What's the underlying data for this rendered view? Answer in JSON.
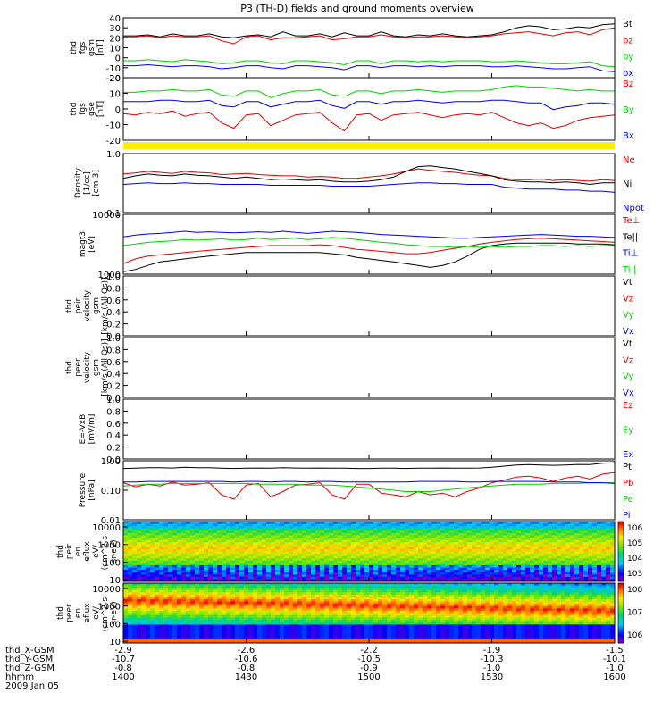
{
  "title": "P3 (TH-D) fields and ground moments overview",
  "colors": {
    "black": "#000000",
    "red": "#e00000",
    "green": "#00d000",
    "blue": "#0000e0",
    "yellow": "#ffee00"
  },
  "footer": {
    "rows": [
      "thd_X-GSM",
      "thd_Y-GSM",
      "thd_Z-GSM",
      "hhmm",
      "2009 Jan 05"
    ],
    "columns": [
      [
        "-2.9",
        "-10.7",
        "-0.8",
        "1400"
      ],
      [
        "-2.6",
        "-10.6",
        "-0.8",
        "1430"
      ],
      [
        "-2.2",
        "-10.5",
        "-0.9",
        "1500"
      ],
      [
        "-1.9",
        "-10.3",
        "-1.0",
        "1530"
      ],
      [
        "-1.5",
        "-10.1",
        "-1.0",
        "1600"
      ]
    ]
  },
  "chart_data": [
    {
      "id": "p1",
      "type": "line",
      "ylabel": [
        "thd",
        "fgs",
        "gsm",
        "[nT]"
      ],
      "yticks": [
        "40",
        "30",
        "20",
        "10",
        "0",
        "-10",
        "-20"
      ],
      "ylim": [
        -20,
        40
      ],
      "series": [
        {
          "name": "Bt",
          "color": "black",
          "values": [
            22,
            22,
            23,
            21,
            24,
            22,
            22,
            24,
            21,
            20,
            22,
            23,
            21,
            26,
            22,
            22,
            24,
            21,
            25,
            22,
            22,
            26,
            22,
            21,
            23,
            22,
            24,
            22,
            21,
            22,
            23,
            26,
            30,
            32,
            31,
            28,
            29,
            31,
            30,
            33,
            34
          ]
        },
        {
          "name": "bz",
          "color": "red",
          "values": [
            21,
            21,
            22,
            20,
            22,
            21,
            21,
            22,
            17,
            14,
            21,
            22,
            18,
            20,
            20,
            21,
            22,
            18,
            19,
            21,
            21,
            23,
            21,
            20,
            21,
            21,
            22,
            21,
            20,
            21,
            22,
            24,
            25,
            26,
            24,
            22,
            25,
            26,
            23,
            28,
            30
          ]
        },
        {
          "name": "by",
          "color": "green",
          "values": [
            -3,
            -3,
            -2,
            -3,
            -4,
            -2,
            -3,
            -4,
            -6,
            -5,
            -3,
            -3,
            -5,
            -6,
            -3,
            -3,
            -4,
            -5,
            -7,
            -3,
            -3,
            -6,
            -3,
            -3,
            -4,
            -3,
            -4,
            -3,
            -3,
            -3,
            -4,
            -4,
            -3,
            -4,
            -5,
            -6,
            -6,
            -5,
            -4,
            -8,
            -9
          ]
        },
        {
          "name": "bx",
          "color": "blue",
          "values": [
            -8,
            -8,
            -7,
            -8,
            -9,
            -8,
            -8,
            -9,
            -11,
            -10,
            -8,
            -8,
            -10,
            -11,
            -8,
            -8,
            -9,
            -10,
            -12,
            -8,
            -8,
            -10,
            -8,
            -8,
            -9,
            -8,
            -9,
            -8,
            -8,
            -8,
            -9,
            -9,
            -8,
            -9,
            -10,
            -11,
            -11,
            -10,
            -9,
            -13,
            -14
          ]
        }
      ]
    },
    {
      "id": "p2",
      "type": "line",
      "ylabel": [
        "thd",
        "fgs",
        "gse",
        "[nT]"
      ],
      "yticks": [
        "20",
        "10",
        "0",
        "-10",
        "-20"
      ],
      "ylim": [
        -25,
        22
      ],
      "series": [
        {
          "name": "Bz",
          "color": "red",
          "values": [
            -5,
            -6,
            -4,
            -5,
            -3,
            -7,
            -5,
            -4,
            -12,
            -16,
            -6,
            -5,
            -14,
            -10,
            -6,
            -5,
            -4,
            -12,
            -18,
            -6,
            -5,
            -10,
            -6,
            -5,
            -4,
            -6,
            -8,
            -6,
            -5,
            -6,
            -4,
            -8,
            -12,
            -14,
            -12,
            -16,
            -14,
            -10,
            -8,
            -7,
            -6
          ]
        },
        {
          "name": "By",
          "color": "green",
          "values": [
            11,
            11,
            12,
            12,
            13,
            12,
            12,
            13,
            9,
            8,
            12,
            12,
            7,
            10,
            12,
            12,
            13,
            9,
            8,
            12,
            12,
            10,
            12,
            12,
            13,
            12,
            11,
            12,
            12,
            12,
            13,
            15,
            16,
            15,
            15,
            14,
            13,
            12,
            13,
            12,
            12
          ]
        },
        {
          "name": "Bx",
          "color": "blue",
          "values": [
            4,
            4,
            4,
            5,
            5,
            4,
            4,
            5,
            1,
            0,
            4,
            4,
            0,
            2,
            4,
            4,
            5,
            1,
            -1,
            4,
            4,
            2,
            4,
            4,
            5,
            4,
            3,
            4,
            4,
            4,
            5,
            5,
            4,
            3,
            3,
            -2,
            0,
            1,
            3,
            3,
            2
          ]
        }
      ]
    },
    {
      "id": "p3",
      "type": "line",
      "ylog": true,
      "ylabel": [
        "Density",
        "[1/cc]",
        "[cm-3]"
      ],
      "yticks": [
        "1.0",
        "0.1"
      ],
      "ylim": [
        0.1,
        1.0
      ],
      "series": [
        {
          "name": "Ne",
          "color": "red",
          "values": [
            0.45,
            0.47,
            0.5,
            0.48,
            0.46,
            0.5,
            0.48,
            0.47,
            0.44,
            0.45,
            0.46,
            0.44,
            0.43,
            0.42,
            0.42,
            0.4,
            0.41,
            0.4,
            0.38,
            0.38,
            0.4,
            0.42,
            0.45,
            0.5,
            0.55,
            0.52,
            0.5,
            0.48,
            0.45,
            0.43,
            0.42,
            0.38,
            0.36,
            0.36,
            0.37,
            0.35,
            0.36,
            0.35,
            0.34,
            0.36,
            0.35
          ]
        },
        {
          "name": "Ni",
          "color": "black",
          "values": [
            0.38,
            0.42,
            0.45,
            0.43,
            0.42,
            0.45,
            0.43,
            0.42,
            0.4,
            0.38,
            0.4,
            0.38,
            0.36,
            0.37,
            0.36,
            0.35,
            0.36,
            0.34,
            0.33,
            0.33,
            0.34,
            0.36,
            0.4,
            0.5,
            0.6,
            0.62,
            0.58,
            0.55,
            0.5,
            0.46,
            0.42,
            0.36,
            0.34,
            0.33,
            0.33,
            0.32,
            0.33,
            0.32,
            0.3,
            0.32,
            0.32
          ]
        },
        {
          "name": "Npot",
          "color": "blue",
          "values": [
            0.3,
            0.31,
            0.32,
            0.31,
            0.31,
            0.32,
            0.31,
            0.31,
            0.3,
            0.3,
            0.3,
            0.3,
            0.29,
            0.29,
            0.29,
            0.29,
            0.29,
            0.28,
            0.28,
            0.28,
            0.28,
            0.29,
            0.3,
            0.31,
            0.32,
            0.32,
            0.31,
            0.31,
            0.3,
            0.3,
            0.3,
            0.27,
            0.26,
            0.25,
            0.25,
            0.25,
            0.24,
            0.24,
            0.23,
            0.23,
            0.22
          ]
        }
      ]
    },
    {
      "id": "p4",
      "type": "line",
      "ylog": true,
      "ylabel": [
        "magt3",
        "[eV]"
      ],
      "yticks": [
        "10000",
        "1000"
      ],
      "ylim": [
        1000,
        10000
      ],
      "series": [
        {
          "name": "Te⊥",
          "color": "red",
          "values": [
            1500,
            1800,
            2000,
            2100,
            2200,
            2300,
            2400,
            2500,
            2600,
            2700,
            2800,
            2900,
            3000,
            3000,
            3000,
            3000,
            3100,
            3000,
            2800,
            2600,
            2500,
            2400,
            2300,
            2200,
            2200,
            2300,
            2500,
            2700,
            2900,
            3200,
            3400,
            3600,
            3800,
            3900,
            4000,
            3900,
            3800,
            3700,
            3600,
            3500,
            3400
          ]
        },
        {
          "name": "Te||",
          "color": "black",
          "values": [
            1100,
            1200,
            1400,
            1600,
            1700,
            1800,
            1900,
            2000,
            2100,
            2200,
            2300,
            2300,
            2300,
            2300,
            2300,
            2300,
            2300,
            2200,
            2100,
            1900,
            1800,
            1700,
            1600,
            1500,
            1400,
            1300,
            1400,
            1600,
            2000,
            2600,
            3000,
            3200,
            3300,
            3300,
            3300,
            3300,
            3300,
            3200,
            3200,
            3200,
            3100
          ]
        },
        {
          "name": "Ti⊥",
          "color": "blue",
          "values": [
            4200,
            4500,
            4700,
            4800,
            5000,
            5200,
            5000,
            5100,
            5000,
            4900,
            5000,
            5100,
            5000,
            5200,
            5000,
            4800,
            5000,
            5200,
            5100,
            5000,
            4800,
            4600,
            4500,
            4400,
            4300,
            4200,
            4100,
            4000,
            4000,
            4100,
            4200,
            4300,
            4400,
            4500,
            4600,
            4500,
            4400,
            4300,
            4300,
            4200,
            4100
          ]
        },
        {
          "name": "Ti||",
          "color": "green",
          "values": [
            3000,
            3200,
            3400,
            3500,
            3600,
            3800,
            3700,
            3800,
            3900,
            3700,
            3800,
            4000,
            3800,
            3900,
            4000,
            3800,
            3900,
            4100,
            4000,
            3800,
            3600,
            3400,
            3300,
            3100,
            3000,
            2900,
            2900,
            2800,
            2900,
            2800,
            2900,
            2800,
            2900,
            2900,
            3000,
            3000,
            2900,
            3000,
            2900,
            3000,
            3000
          ]
        }
      ]
    },
    {
      "id": "p5",
      "type": "line",
      "ylabel": [
        "thd",
        "peir",
        "velocity",
        "gsm",
        "[km/s (All Qs)]"
      ],
      "yticks": [
        "1.0",
        "0.8",
        "0.6",
        "0.4",
        "0.2",
        "0.0"
      ],
      "ylim": [
        0,
        1
      ],
      "series": [
        {
          "name": "Vt",
          "color": "black",
          "values": []
        },
        {
          "name": "Vz",
          "color": "red",
          "values": []
        },
        {
          "name": "Vy",
          "color": "green",
          "values": []
        },
        {
          "name": "Vx",
          "color": "blue",
          "values": []
        }
      ]
    },
    {
      "id": "p6",
      "type": "line",
      "ylabel": [
        "thd",
        "peer",
        "velocity",
        "gsm",
        "[km/s (All Qs)]"
      ],
      "yticks": [
        "1.0",
        "0.8",
        "0.6",
        "0.4",
        "0.2",
        "0.0"
      ],
      "ylim": [
        0,
        1
      ],
      "series": [
        {
          "name": "Vt",
          "color": "black",
          "values": []
        },
        {
          "name": "Vz",
          "color": "red",
          "values": []
        },
        {
          "name": "Vy",
          "color": "green",
          "values": []
        },
        {
          "name": "Vx",
          "color": "blue",
          "values": []
        }
      ]
    },
    {
      "id": "p7",
      "type": "line",
      "ylabel": [
        "E=-VxB",
        "[mV/m]"
      ],
      "yticks": [
        "1.0",
        "0.8",
        "0.6",
        "0.4",
        "0.2",
        "0.0"
      ],
      "ylim": [
        0,
        1
      ],
      "series": [
        {
          "name": "Ez",
          "color": "red",
          "values": []
        },
        {
          "name": "Ey",
          "color": "green",
          "values": []
        },
        {
          "name": "Ex",
          "color": "blue",
          "values": []
        }
      ]
    },
    {
      "id": "p8",
      "type": "line",
      "ylog": true,
      "ylabel": [
        "Pressure",
        "[nPa]"
      ],
      "yticks": [
        "1.00",
        "0.10",
        "0.01"
      ],
      "ylim": [
        0.01,
        1.0
      ],
      "series": [
        {
          "name": "Pt",
          "color": "black",
          "values": [
            0.55,
            0.56,
            0.58,
            0.58,
            0.57,
            0.6,
            0.58,
            0.58,
            0.56,
            0.55,
            0.56,
            0.57,
            0.56,
            0.58,
            0.57,
            0.56,
            0.57,
            0.56,
            0.56,
            0.55,
            0.55,
            0.56,
            0.56,
            0.55,
            0.56,
            0.56,
            0.57,
            0.56,
            0.56,
            0.57,
            0.6,
            0.66,
            0.72,
            0.74,
            0.72,
            0.7,
            0.72,
            0.75,
            0.74,
            0.82,
            0.85
          ]
        },
        {
          "name": "Pb",
          "color": "red",
          "values": [
            0.18,
            0.13,
            0.16,
            0.14,
            0.19,
            0.15,
            0.16,
            0.18,
            0.07,
            0.05,
            0.15,
            0.17,
            0.06,
            0.09,
            0.15,
            0.16,
            0.18,
            0.07,
            0.05,
            0.16,
            0.16,
            0.08,
            0.07,
            0.06,
            0.09,
            0.07,
            0.08,
            0.06,
            0.09,
            0.12,
            0.18,
            0.22,
            0.28,
            0.3,
            0.26,
            0.2,
            0.26,
            0.3,
            0.24,
            0.35,
            0.4
          ]
        },
        {
          "name": "Pe",
          "color": "green",
          "values": [
            0.14,
            0.15,
            0.16,
            0.16,
            0.17,
            0.17,
            0.17,
            0.17,
            0.17,
            0.17,
            0.17,
            0.16,
            0.16,
            0.16,
            0.16,
            0.15,
            0.15,
            0.15,
            0.14,
            0.13,
            0.12,
            0.11,
            0.1,
            0.09,
            0.09,
            0.09,
            0.1,
            0.11,
            0.12,
            0.13,
            0.14,
            0.15,
            0.16,
            0.16,
            0.16,
            0.17,
            0.17,
            0.17,
            0.18,
            0.18,
            0.18
          ]
        },
        {
          "name": "Pi",
          "color": "blue",
          "values": [
            0.19,
            0.19,
            0.2,
            0.2,
            0.2,
            0.2,
            0.2,
            0.2,
            0.2,
            0.19,
            0.2,
            0.2,
            0.19,
            0.2,
            0.2,
            0.19,
            0.2,
            0.2,
            0.19,
            0.19,
            0.19,
            0.19,
            0.19,
            0.19,
            0.2,
            0.2,
            0.2,
            0.2,
            0.19,
            0.19,
            0.2,
            0.2,
            0.2,
            0.2,
            0.2,
            0.19,
            0.19,
            0.19,
            0.18,
            0.18,
            0.17
          ]
        }
      ]
    },
    {
      "id": "p9",
      "type": "heatmap",
      "ylog": true,
      "ylabel": [
        "thd",
        "peir",
        "en",
        "eflux",
        "eV/",
        "(cm^2-s-",
        "sr-eV)"
      ],
      "yticks": [
        "10000",
        "1000",
        "100",
        "10"
      ],
      "ylim": [
        8,
        20000
      ],
      "colorbar": {
        "labels": [
          "10^6",
          "10^5",
          "10^4",
          "10^3"
        ]
      }
    },
    {
      "id": "p10",
      "type": "heatmap",
      "ylog": true,
      "ylabel": [
        "thd",
        "peer",
        "en",
        "eflux",
        "eV/",
        "(cm^2-s-",
        "sr-eV)"
      ],
      "yticks": [
        "10000",
        "1000",
        "100",
        "10"
      ],
      "ylim": [
        8,
        20000
      ],
      "colorbar": {
        "labels": [
          "10^8",
          "10^7",
          "10^6"
        ]
      }
    }
  ]
}
